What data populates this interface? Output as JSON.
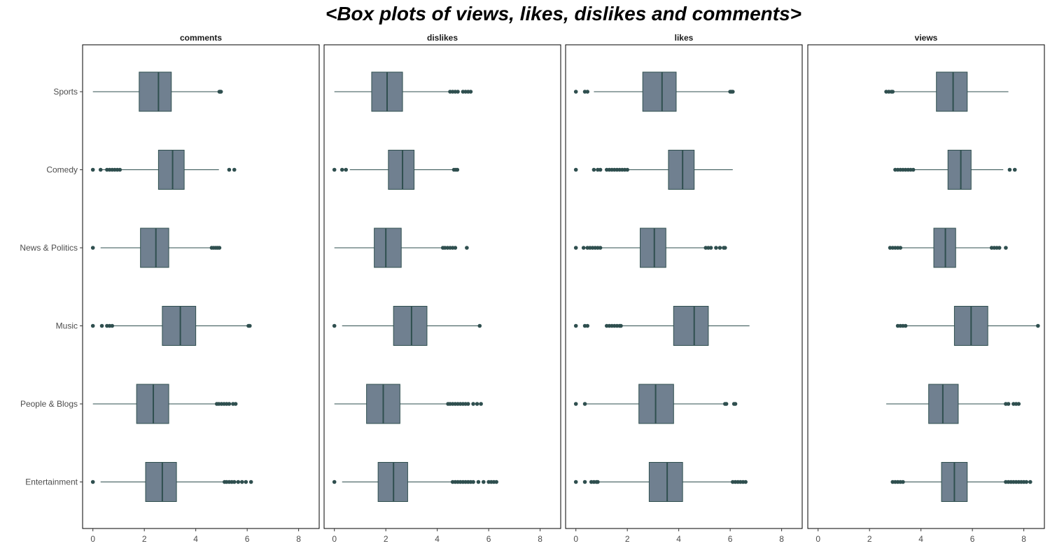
{
  "chart_data": {
    "type": "boxplot",
    "title": "<Box plots of views, likes, dislikes and comments>",
    "orientation": "horizontal",
    "facets": [
      "comments",
      "dislikes",
      "likes",
      "views"
    ],
    "categories": [
      "Sports",
      "Comedy",
      "News & Politics",
      "Music",
      "People & Blogs",
      "Entertainment"
    ],
    "xlim": [
      -0.4,
      8.8
    ],
    "xticks": [
      0,
      2,
      4,
      6,
      8
    ],
    "grid": false,
    "colors": {
      "box_fill": "#708090",
      "line": "#2f4f4f",
      "panel_border": "#000000"
    },
    "boxes": {
      "comments": [
        {
          "category": "Sports",
          "whisker_low": 0.0,
          "q1": 1.8,
          "median": 2.55,
          "q3": 3.05,
          "whisker_high": 4.9,
          "outliers": [
            4.92,
            4.95,
            4.98
          ]
        },
        {
          "category": "Comedy",
          "whisker_low": 0.3,
          "q1": 2.55,
          "median": 3.1,
          "q3": 3.55,
          "whisker_high": 4.9,
          "outliers": [
            0.0,
            0.3,
            0.55,
            0.65,
            0.75,
            0.85,
            0.95,
            1.05,
            5.3,
            5.5
          ]
        },
        {
          "category": "News & Politics",
          "whisker_low": 0.3,
          "q1": 1.85,
          "median": 2.45,
          "q3": 2.95,
          "whisker_high": 4.6,
          "outliers": [
            0.0,
            4.62,
            4.7,
            4.78,
            4.85,
            4.92
          ]
        },
        {
          "category": "Music",
          "whisker_low": 0.8,
          "q1": 2.7,
          "median": 3.4,
          "q3": 4.0,
          "whisker_high": 6.0,
          "outliers": [
            0.0,
            0.35,
            0.55,
            0.65,
            0.75,
            6.05,
            6.1
          ]
        },
        {
          "category": "People & Blogs",
          "whisker_low": 0.0,
          "q1": 1.7,
          "median": 2.35,
          "q3": 2.95,
          "whisker_high": 4.8,
          "outliers": [
            4.82,
            4.9,
            5.0,
            5.1,
            5.2,
            5.3,
            5.45,
            5.55
          ]
        },
        {
          "category": "Entertainment",
          "whisker_low": 0.3,
          "q1": 2.05,
          "median": 2.7,
          "q3": 3.25,
          "whisker_high": 5.1,
          "outliers": [
            0.0,
            5.12,
            5.2,
            5.3,
            5.4,
            5.5,
            5.65,
            5.8,
            5.95,
            6.15
          ]
        }
      ],
      "dislikes": [
        {
          "category": "Sports",
          "whisker_low": 0.0,
          "q1": 1.45,
          "median": 2.05,
          "q3": 2.65,
          "whisker_high": 4.45,
          "outliers": [
            4.5,
            4.6,
            4.7,
            4.8,
            5.0,
            5.1,
            5.2,
            5.3
          ]
        },
        {
          "category": "Comedy",
          "whisker_low": 0.6,
          "q1": 2.1,
          "median": 2.65,
          "q3": 3.1,
          "whisker_high": 4.6,
          "outliers": [
            0.0,
            0.3,
            0.45,
            4.65,
            4.72,
            4.78
          ]
        },
        {
          "category": "News & Politics",
          "whisker_low": 0.0,
          "q1": 1.55,
          "median": 2.0,
          "q3": 2.6,
          "whisker_high": 4.2,
          "outliers": [
            4.22,
            4.3,
            4.4,
            4.5,
            4.6,
            4.7,
            5.15
          ]
        },
        {
          "category": "Music",
          "whisker_low": 0.3,
          "q1": 2.3,
          "median": 3.0,
          "q3": 3.6,
          "whisker_high": 5.6,
          "outliers": [
            0.0,
            5.65
          ]
        },
        {
          "category": "People & Blogs",
          "whisker_low": 0.0,
          "q1": 1.25,
          "median": 1.9,
          "q3": 2.55,
          "whisker_high": 4.4,
          "outliers": [
            4.42,
            4.5,
            4.6,
            4.7,
            4.8,
            4.9,
            5.0,
            5.1,
            5.2,
            5.4,
            5.55,
            5.7
          ]
        },
        {
          "category": "Entertainment",
          "whisker_low": 0.3,
          "q1": 1.7,
          "median": 2.3,
          "q3": 2.85,
          "whisker_high": 4.55,
          "outliers": [
            0.0,
            4.6,
            4.7,
            4.8,
            4.9,
            5.0,
            5.1,
            5.2,
            5.3,
            5.4,
            5.6,
            5.8,
            6.0,
            6.1,
            6.2,
            6.3
          ]
        }
      ],
      "likes": [
        {
          "category": "Sports",
          "whisker_low": 0.7,
          "q1": 2.6,
          "median": 3.35,
          "q3": 3.9,
          "whisker_high": 5.95,
          "outliers": [
            0.0,
            0.35,
            0.45,
            6.0,
            6.05,
            6.1
          ]
        },
        {
          "category": "Comedy",
          "whisker_low": 2.0,
          "q1": 3.6,
          "median": 4.15,
          "q3": 4.6,
          "whisker_high": 6.1,
          "outliers": [
            0.0,
            0.7,
            0.85,
            0.95,
            1.2,
            1.3,
            1.4,
            1.5,
            1.6,
            1.7,
            1.8,
            1.9,
            2.0
          ]
        },
        {
          "category": "News & Politics",
          "whisker_low": 1.0,
          "q1": 2.5,
          "median": 3.05,
          "q3": 3.5,
          "whisker_high": 5.0,
          "outliers": [
            0.0,
            0.3,
            0.45,
            0.55,
            0.65,
            0.75,
            0.85,
            0.95,
            5.05,
            5.15,
            5.25,
            5.45,
            5.6,
            5.75,
            5.8
          ]
        },
        {
          "category": "Music",
          "whisker_low": 1.8,
          "q1": 3.8,
          "median": 4.6,
          "q3": 5.15,
          "whisker_high": 6.75,
          "outliers": [
            0.0,
            0.35,
            0.45,
            1.2,
            1.3,
            1.4,
            1.5,
            1.6,
            1.7,
            1.75
          ]
        },
        {
          "category": "People & Blogs",
          "whisker_low": 0.4,
          "q1": 2.45,
          "median": 3.1,
          "q3": 3.8,
          "whisker_high": 5.75,
          "outliers": [
            0.0,
            0.35,
            5.8,
            5.85,
            6.15,
            6.2
          ]
        },
        {
          "category": "Entertainment",
          "whisker_low": 0.9,
          "q1": 2.85,
          "median": 3.55,
          "q3": 4.15,
          "whisker_high": 6.05,
          "outliers": [
            0.0,
            0.35,
            0.6,
            0.7,
            0.8,
            0.85,
            6.1,
            6.2,
            6.3,
            6.4,
            6.5,
            6.6
          ]
        }
      ],
      "views": [
        {
          "category": "Sports",
          "whisker_low": 2.95,
          "q1": 4.6,
          "median": 5.25,
          "q3": 5.8,
          "whisker_high": 7.4,
          "outliers": [
            2.65,
            2.75,
            2.85,
            2.9
          ]
        },
        {
          "category": "Comedy",
          "whisker_low": 3.7,
          "q1": 5.05,
          "median": 5.55,
          "q3": 5.95,
          "whisker_high": 7.2,
          "outliers": [
            3.0,
            3.1,
            3.2,
            3.3,
            3.4,
            3.5,
            3.6,
            3.7,
            7.45,
            7.65
          ]
        },
        {
          "category": "News & Politics",
          "whisker_low": 3.2,
          "q1": 4.5,
          "median": 4.95,
          "q3": 5.35,
          "whisker_high": 6.7,
          "outliers": [
            2.8,
            2.9,
            3.0,
            3.1,
            3.2,
            6.75,
            6.85,
            6.95,
            7.05,
            7.3
          ]
        },
        {
          "category": "Music",
          "whisker_low": 3.4,
          "q1": 5.3,
          "median": 5.95,
          "q3": 6.6,
          "whisker_high": 8.5,
          "outliers": [
            3.1,
            3.2,
            3.3,
            3.4,
            8.55
          ]
        },
        {
          "category": "People & Blogs",
          "whisker_low": 2.65,
          "q1": 4.3,
          "median": 4.85,
          "q3": 5.45,
          "whisker_high": 7.25,
          "outliers": [
            7.3,
            7.4,
            7.6,
            7.7,
            7.8
          ]
        },
        {
          "category": "Entertainment",
          "whisker_low": 3.3,
          "q1": 4.8,
          "median": 5.3,
          "q3": 5.8,
          "whisker_high": 7.25,
          "outliers": [
            2.9,
            3.0,
            3.1,
            3.2,
            3.3,
            7.3,
            7.4,
            7.5,
            7.6,
            7.7,
            7.8,
            7.9,
            8.0,
            8.1,
            8.25
          ]
        }
      ]
    }
  }
}
